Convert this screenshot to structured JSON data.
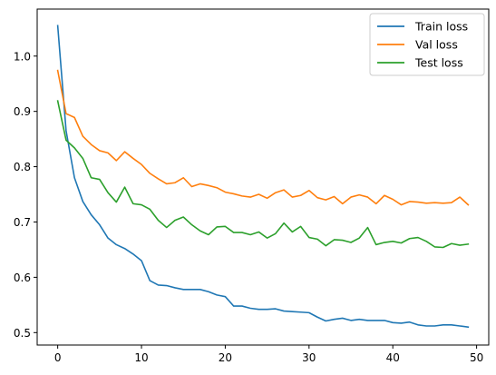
{
  "chart_data": {
    "type": "line",
    "title": "",
    "xlabel": "",
    "ylabel": "",
    "xlim": [
      -2.45,
      51.45
    ],
    "ylim": [
      0.4775,
      1.085
    ],
    "xticks": [
      0,
      10,
      20,
      30,
      40,
      50
    ],
    "yticks": [
      0.5,
      0.6,
      0.7,
      0.8,
      0.9,
      1.0
    ],
    "xtick_labels": [
      "0",
      "10",
      "20",
      "30",
      "40",
      "50"
    ],
    "ytick_labels": [
      "0.5",
      "0.6",
      "0.7",
      "0.8",
      "0.9",
      "1.0"
    ],
    "grid": false,
    "legend_position": "top-right",
    "x": [
      0,
      1,
      2,
      3,
      4,
      5,
      6,
      7,
      8,
      9,
      10,
      11,
      12,
      13,
      14,
      15,
      16,
      17,
      18,
      19,
      20,
      21,
      22,
      23,
      24,
      25,
      26,
      27,
      28,
      29,
      30,
      31,
      32,
      33,
      34,
      35,
      36,
      37,
      38,
      39,
      40,
      41,
      42,
      43,
      44,
      45,
      46,
      47,
      48,
      49
    ],
    "series": [
      {
        "name": "Train loss",
        "color": "#1f77b4",
        "values": [
          1.055,
          0.865,
          0.78,
          0.737,
          0.713,
          0.695,
          0.671,
          0.659,
          0.652,
          0.642,
          0.63,
          0.594,
          0.586,
          0.585,
          0.581,
          0.578,
          0.578,
          0.578,
          0.574,
          0.568,
          0.565,
          0.548,
          0.548,
          0.544,
          0.542,
          0.542,
          0.543,
          0.539,
          0.538,
          0.537,
          0.536,
          0.528,
          0.521,
          0.524,
          0.526,
          0.522,
          0.524,
          0.522,
          0.522,
          0.522,
          0.518,
          0.517,
          0.519,
          0.514,
          0.512,
          0.512,
          0.514,
          0.514,
          0.512,
          0.51
        ]
      },
      {
        "name": "Val loss",
        "color": "#ff7f0e",
        "values": [
          0.974,
          0.896,
          0.889,
          0.855,
          0.84,
          0.829,
          0.825,
          0.811,
          0.827,
          0.815,
          0.804,
          0.788,
          0.778,
          0.769,
          0.771,
          0.78,
          0.764,
          0.769,
          0.766,
          0.762,
          0.754,
          0.751,
          0.747,
          0.745,
          0.75,
          0.743,
          0.753,
          0.758,
          0.745,
          0.748,
          0.757,
          0.744,
          0.74,
          0.746,
          0.733,
          0.745,
          0.749,
          0.745,
          0.733,
          0.748,
          0.741,
          0.731,
          0.737,
          0.736,
          0.734,
          0.735,
          0.734,
          0.735,
          0.745,
          0.731
        ]
      },
      {
        "name": "Test loss",
        "color": "#2ca02c",
        "values": [
          0.919,
          0.848,
          0.834,
          0.815,
          0.78,
          0.777,
          0.753,
          0.736,
          0.763,
          0.733,
          0.731,
          0.723,
          0.703,
          0.69,
          0.703,
          0.709,
          0.695,
          0.684,
          0.677,
          0.691,
          0.692,
          0.681,
          0.681,
          0.677,
          0.682,
          0.671,
          0.679,
          0.698,
          0.682,
          0.692,
          0.672,
          0.669,
          0.657,
          0.668,
          0.667,
          0.663,
          0.671,
          0.69,
          0.659,
          0.663,
          0.665,
          0.662,
          0.67,
          0.672,
          0.665,
          0.655,
          0.654,
          0.661,
          0.658,
          0.66
        ]
      }
    ]
  }
}
